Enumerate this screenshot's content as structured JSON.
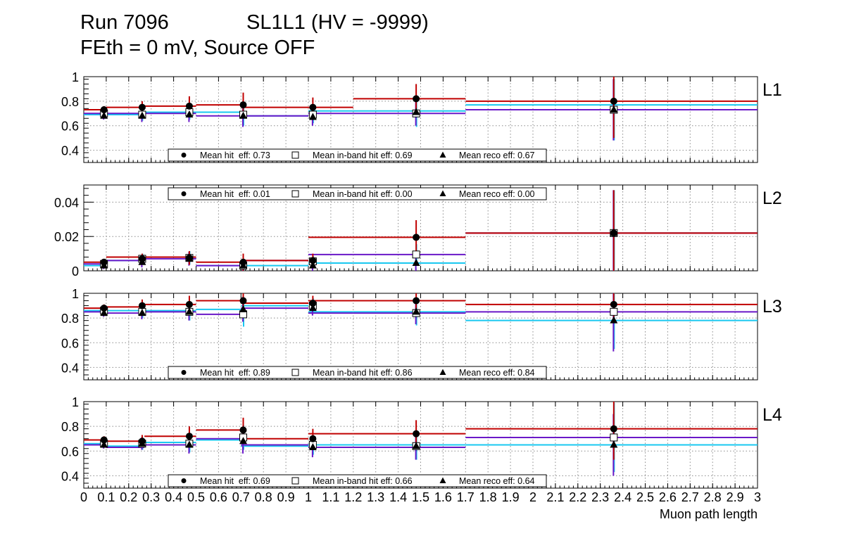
{
  "header": {
    "run": "Run 7096",
    "chamber": "SL1L1 (HV = -9999)",
    "conditions": "FEth = 0 mV, Source OFF"
  },
  "colors": {
    "hit": "#c00000",
    "inband": "#19c8f0",
    "reco": "#6a18c8",
    "grid": "#8a8a8a",
    "frame": "#000000"
  },
  "chart_data": {
    "type": "scatter",
    "xlabel": "Muon path length",
    "xlim": [
      0,
      3
    ],
    "xticks": [
      0,
      0.1,
      0.2,
      0.3,
      0.4,
      0.5,
      0.6,
      0.7,
      0.8,
      0.9,
      1,
      1.1,
      1.2,
      1.3,
      1.4,
      1.5,
      1.6,
      1.7,
      1.8,
      1.9,
      2,
      2.1,
      2.2,
      2.3,
      2.4,
      2.5,
      2.6,
      2.7,
      2.8,
      2.9,
      3
    ],
    "bins": [
      [
        0,
        0.1
      ],
      [
        0.1,
        0.27
      ],
      [
        0.27,
        0.5
      ],
      [
        0.5,
        0.7
      ],
      [
        0.7,
        1
      ],
      [
        1,
        1.2
      ],
      [
        1.2,
        1.7
      ],
      [
        1.7,
        3
      ]
    ],
    "bin_centers": [
      0.09,
      0.26,
      0.47,
      0.71,
      1.02,
      1.48,
      2.36
    ],
    "series_names": [
      "Mean hit eff",
      "Mean in-band hit eff",
      "Mean reco eff"
    ],
    "panels": [
      {
        "label": "L1",
        "ylim": [
          0.3,
          1.0
        ],
        "yticks": [
          0.4,
          0.6,
          0.8,
          1
        ],
        "yticklabels": [
          "0.4",
          "0.6",
          "0.8",
          "1"
        ],
        "legend_position": "bottom",
        "legend": [
          "Mean hit  eff: 0.73",
          "Mean in-band hit eff: 0.69",
          "Mean reco eff: 0.67"
        ],
        "hit": [
          0.73,
          0.75,
          0.76,
          0.77,
          0.75,
          0.82,
          0.8
        ],
        "hit_err": [
          0.03,
          0.05,
          0.08,
          0.1,
          0.08,
          0.12,
          0.3
        ],
        "hit_lines": [
          0.73,
          0.75,
          0.76,
          0.77,
          0.75,
          0.75,
          0.82,
          0.8
        ],
        "inband": [
          0.7,
          0.69,
          0.71,
          0.69,
          0.69,
          0.7,
          0.73
        ],
        "inband_err": [
          0.03,
          0.05,
          0.06,
          0.09,
          0.07,
          0.11,
          0.25
        ],
        "inband_lines": [
          0.69,
          0.69,
          0.71,
          0.71,
          0.68,
          0.72,
          0.72,
          0.77
        ],
        "reco": [
          0.68,
          0.68,
          0.69,
          0.68,
          0.67,
          0.71,
          0.73
        ],
        "reco_err": [
          0.03,
          0.05,
          0.06,
          0.09,
          0.07,
          0.11,
          0.25
        ],
        "reco_lines": [
          0.7,
          0.7,
          0.7,
          0.68,
          0.68,
          0.7,
          0.7,
          0.73
        ]
      },
      {
        "label": "L2",
        "ylim": [
          0,
          0.05
        ],
        "yticks": [
          0,
          0.02,
          0.04
        ],
        "yticklabels": [
          "0",
          "0.02",
          "0.04"
        ],
        "legend_position": "top",
        "legend": [
          "Mean hit  eff: 0.01",
          "Mean in-band hit eff: 0.00",
          "Mean reco eff: 0.00"
        ],
        "hit": [
          0.005,
          0.007,
          0.0075,
          0.005,
          0.006,
          0.0195,
          0.022
        ],
        "hit_err": [
          0.002,
          0.003,
          0.004,
          0.005,
          0.004,
          0.01,
          0.025
        ],
        "hit_lines": [
          0.005,
          0.008,
          0.008,
          0.005,
          0.006,
          0.0195,
          0.0195,
          0.022
        ],
        "inband": [
          0.004,
          0.007,
          0.0075,
          0.003,
          0.0055,
          0.0095,
          0.022
        ],
        "inband_err": [
          0.002,
          0.003,
          0.004,
          0.003,
          0.003,
          0.006,
          0.025
        ],
        "inband_lines": [
          0.003,
          0.006,
          0.008,
          0.003,
          0.003,
          0.0045,
          0.0045,
          0.022
        ],
        "reco": [
          0.003,
          0.005,
          0.007,
          0.003,
          0.003,
          0.0045,
          0.022
        ],
        "reco_err": [
          0.002,
          0.003,
          0.004,
          0.003,
          0.003,
          0.006,
          0.025
        ],
        "reco_lines": [
          0.004,
          0.006,
          0.007,
          0.003,
          0.006,
          0.0095,
          0.0095,
          0.022
        ]
      },
      {
        "label": "L3",
        "ylim": [
          0.3,
          1.0
        ],
        "yticks": [
          0.4,
          0.6,
          0.8,
          1
        ],
        "yticklabels": [
          "0.4",
          "0.6",
          "0.8",
          "1"
        ],
        "legend_position": "bottom",
        "legend": [
          "Mean hit  eff: 0.89",
          "Mean in-band hit eff: 0.86",
          "Mean reco eff: 0.84"
        ],
        "hit": [
          0.88,
          0.9,
          0.91,
          0.94,
          0.92,
          0.94,
          0.91
        ],
        "hit_err": [
          0.03,
          0.05,
          0.07,
          0.07,
          0.06,
          0.07,
          0.15
        ],
        "hit_lines": [
          0.88,
          0.89,
          0.91,
          0.94,
          0.92,
          0.94,
          0.94,
          0.91
        ],
        "inband": [
          0.86,
          0.85,
          0.85,
          0.83,
          0.9,
          0.84,
          0.85
        ],
        "inband_err": [
          0.03,
          0.05,
          0.07,
          0.1,
          0.06,
          0.1,
          0.3
        ],
        "inband_lines": [
          0.86,
          0.86,
          0.86,
          0.87,
          0.9,
          0.85,
          0.85,
          0.78
        ],
        "reco": [
          0.84,
          0.84,
          0.85,
          0.87,
          0.88,
          0.85,
          0.78
        ],
        "reco_err": [
          0.03,
          0.05,
          0.07,
          0.1,
          0.06,
          0.1,
          0.25
        ],
        "reco_lines": [
          0.85,
          0.84,
          0.85,
          0.83,
          0.88,
          0.84,
          0.84,
          0.85
        ]
      },
      {
        "label": "L4",
        "ylim": [
          0.3,
          1.0
        ],
        "yticks": [
          0.4,
          0.6,
          0.8,
          1
        ],
        "yticklabels": [
          "0.4",
          "0.6",
          "0.8",
          "1"
        ],
        "legend_position": "bottom",
        "legend": [
          "Mean hit  eff: 0.69",
          "Mean in-band hit eff: 0.66",
          "Mean reco eff: 0.64"
        ],
        "hit": [
          0.69,
          0.68,
          0.72,
          0.77,
          0.7,
          0.74,
          0.78
        ],
        "hit_err": [
          0.03,
          0.05,
          0.08,
          0.1,
          0.08,
          0.11,
          0.25
        ],
        "hit_lines": [
          0.69,
          0.68,
          0.72,
          0.77,
          0.7,
          0.74,
          0.74,
          0.78
        ],
        "inband": [
          0.66,
          0.66,
          0.66,
          0.71,
          0.65,
          0.64,
          0.71
        ],
        "inband_err": [
          0.03,
          0.05,
          0.07,
          0.1,
          0.08,
          0.11,
          0.28
        ],
        "inband_lines": [
          0.66,
          0.64,
          0.67,
          0.69,
          0.64,
          0.65,
          0.65,
          0.65
        ],
        "reco": [
          0.65,
          0.66,
          0.65,
          0.68,
          0.63,
          0.64,
          0.65
        ],
        "reco_err": [
          0.03,
          0.05,
          0.07,
          0.1,
          0.08,
          0.11,
          0.25
        ],
        "reco_lines": [
          0.65,
          0.63,
          0.65,
          0.7,
          0.65,
          0.63,
          0.63,
          0.71
        ]
      }
    ]
  }
}
